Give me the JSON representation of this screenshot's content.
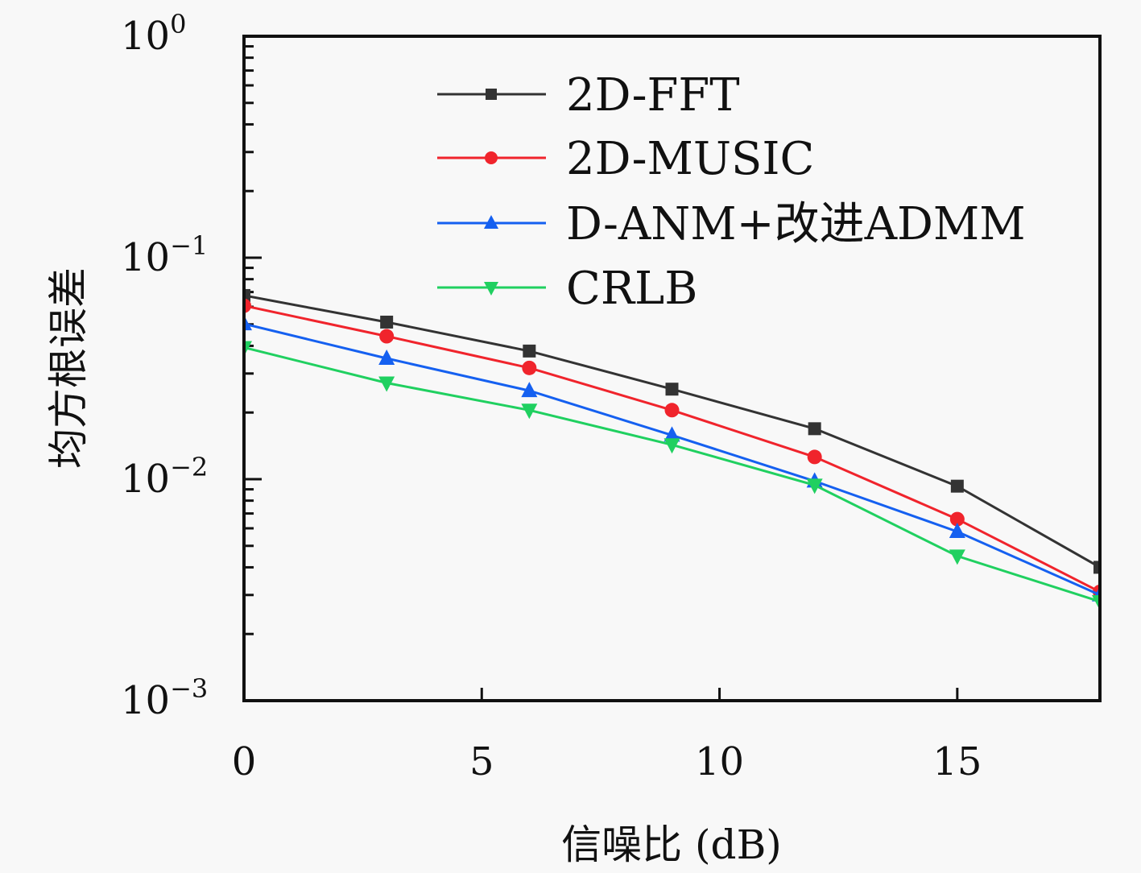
{
  "chart_data": {
    "type": "line",
    "title": "",
    "xlabel": "信噪比 (dB)",
    "ylabel": "均方根误差",
    "xlim": [
      0,
      18
    ],
    "ylim": [
      0.001,
      1
    ],
    "yscale": "log",
    "grid": false,
    "legend_position": "top-right",
    "x": [
      0,
      3,
      6,
      9,
      12,
      15,
      18
    ],
    "x_ticks": [
      0,
      5,
      10,
      15
    ],
    "x_tick_labels": [
      "0",
      "5",
      "10",
      "15"
    ],
    "y_ticks": [
      1,
      0.1,
      0.01,
      0.001
    ],
    "y_tick_labels": [
      {
        "base": "10",
        "exp": "0"
      },
      {
        "base": "10",
        "exp": "−1"
      },
      {
        "base": "10",
        "exp": "−2"
      },
      {
        "base": "10",
        "exp": "−3"
      }
    ],
    "series": [
      {
        "name": "2D-FFT",
        "color": "#333333",
        "marker": "square",
        "values": [
          0.0675,
          0.0512,
          0.0379,
          0.0255,
          0.0169,
          0.0093,
          0.004
        ]
      },
      {
        "name": "2D-MUSIC",
        "color": "#f0242c",
        "marker": "circle",
        "values": [
          0.0607,
          0.0442,
          0.0318,
          0.0205,
          0.0126,
          0.0066,
          0.0031
        ]
      },
      {
        "name": "D-ANM+改进ADMM",
        "color": "#1560f0",
        "marker": "triangle-up",
        "values": [
          0.0503,
          0.0351,
          0.0251,
          0.0158,
          0.0098,
          0.0058,
          0.003
        ]
      },
      {
        "name": "CRLB",
        "color": "#20d060",
        "marker": "triangle-down",
        "values": [
          0.0393,
          0.0272,
          0.0205,
          0.0143,
          0.0094,
          0.0045,
          0.0028
        ]
      }
    ]
  }
}
